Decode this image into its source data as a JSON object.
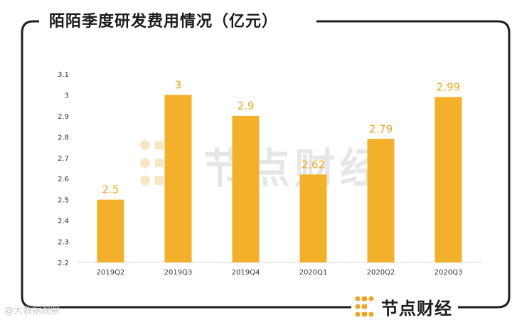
{
  "title": "陌陌季度研发费用情况（亿元）",
  "watermark_text": "节点财经",
  "brand": {
    "name": "节点财经",
    "logo_icon": "jiedian-logo-icon",
    "color": "#f2a51e"
  },
  "weibo_watermark": "@大数据观察",
  "colors": {
    "bar": "#f3b12b",
    "label": "#f2a51e",
    "frame": "#1e1e1e",
    "axis_text": "#333333"
  },
  "chart_data": {
    "type": "bar",
    "title": "陌陌季度研发费用情况（亿元）",
    "categories": [
      "2019Q2",
      "2019Q3",
      "2019Q4",
      "2020Q1",
      "2020Q2",
      "2020Q3"
    ],
    "values": [
      2.5,
      3,
      2.9,
      2.62,
      2.79,
      2.99
    ],
    "value_labels": [
      "2.5",
      "3",
      "2.9",
      "2.62",
      "2.79",
      "2.99"
    ],
    "ylim": [
      2.2,
      3.1
    ],
    "yticks": [
      "2.2",
      "2.3",
      "2.4",
      "2.5",
      "2.6",
      "2.7",
      "2.8",
      "2.9",
      "3",
      "3.1"
    ],
    "xlabel": "",
    "ylabel": "",
    "grid": false,
    "legend": "none"
  }
}
